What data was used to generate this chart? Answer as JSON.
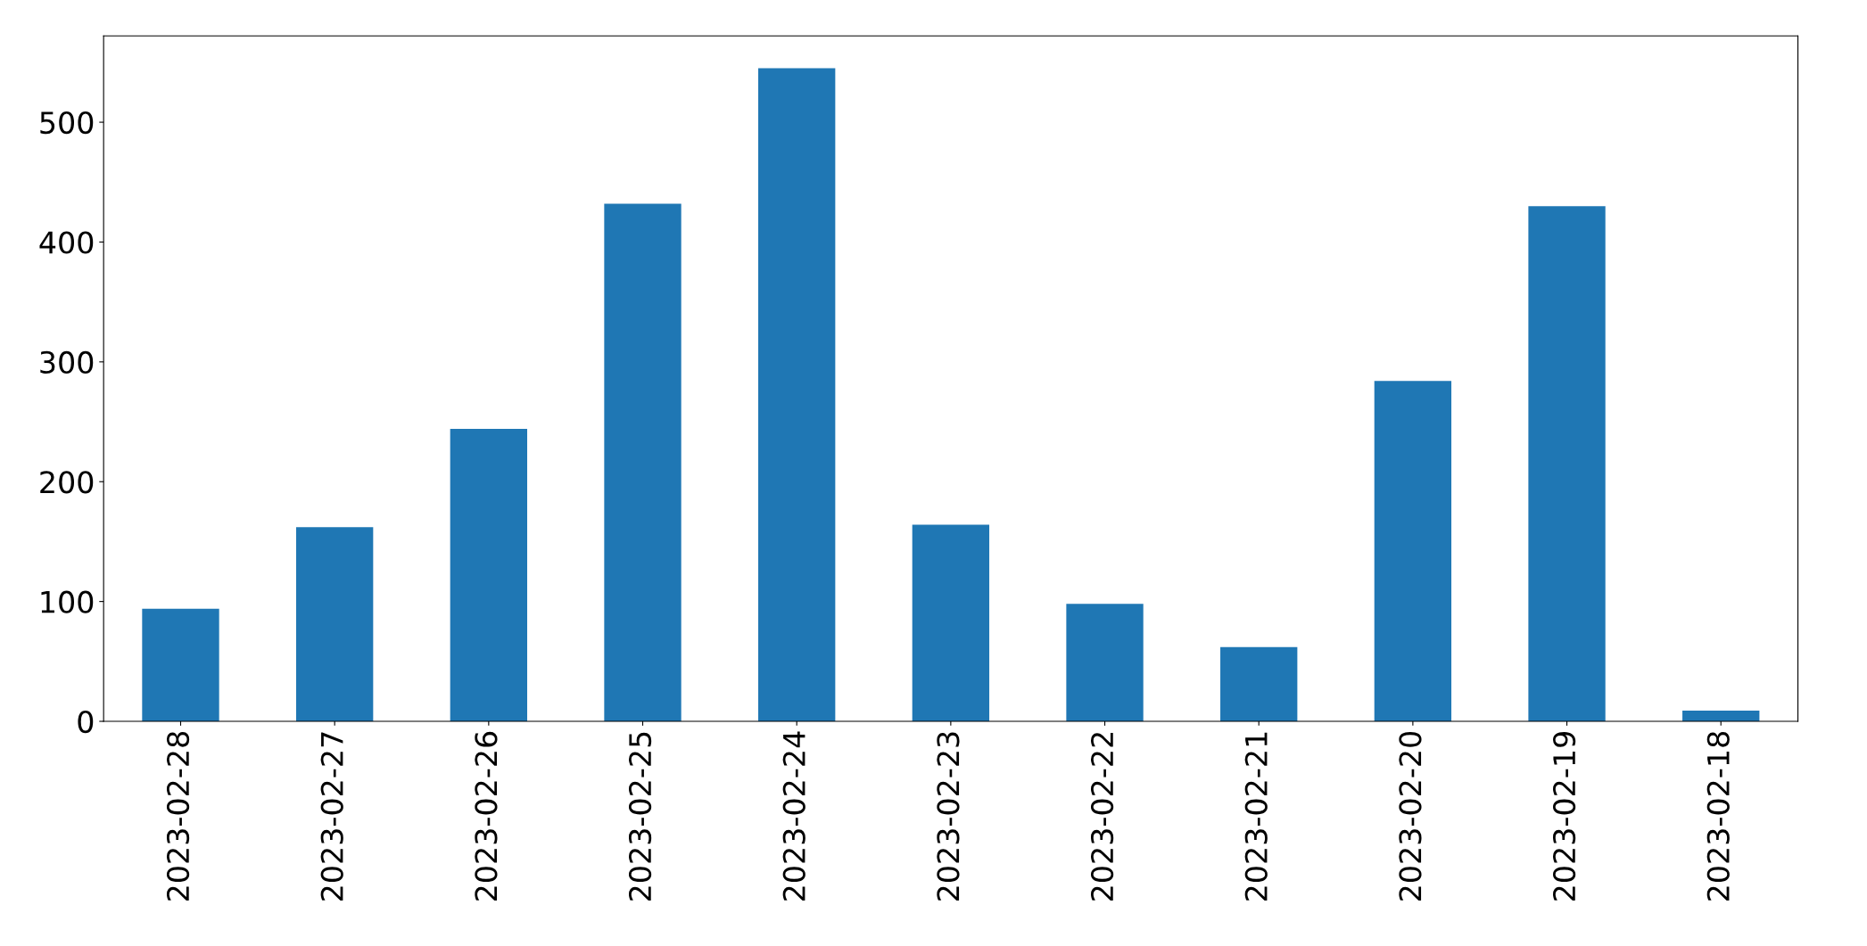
{
  "chart_data": {
    "type": "bar",
    "categories": [
      "2023-02-28",
      "2023-02-27",
      "2023-02-26",
      "2023-02-25",
      "2023-02-24",
      "2023-02-23",
      "2023-02-22",
      "2023-02-21",
      "2023-02-20",
      "2023-02-19",
      "2023-02-18"
    ],
    "values": [
      94,
      162,
      244,
      432,
      545,
      164,
      98,
      62,
      284,
      430,
      9
    ],
    "color": "#1f77b4",
    "ylim": [
      0,
      572
    ],
    "yticks": [
      0,
      100,
      200,
      300,
      400,
      500
    ],
    "grid": false,
    "legend": false
  }
}
